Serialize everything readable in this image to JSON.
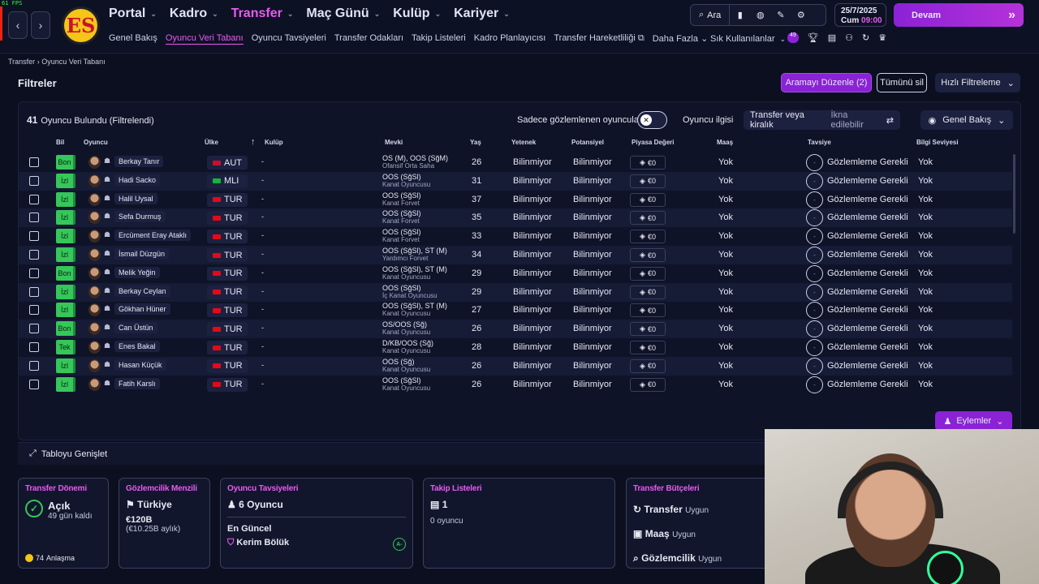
{
  "fps": "61 FPS",
  "nav": {
    "logo_text": "ES",
    "main": [
      {
        "label": "Portal",
        "active": false
      },
      {
        "label": "Kadro",
        "active": false
      },
      {
        "label": "Transfer",
        "active": true
      },
      {
        "label": "Maç Günü",
        "active": false
      },
      {
        "label": "Kulüp",
        "active": false
      },
      {
        "label": "Kariyer",
        "active": false
      }
    ],
    "sub": [
      {
        "label": "Genel Bakış"
      },
      {
        "label": "Oyuncu Veri Tabanı",
        "active": true
      },
      {
        "label": "Oyuncu Tavsiyeleri"
      },
      {
        "label": "Transfer Odakları"
      },
      {
        "label": "Takip Listeleri"
      },
      {
        "label": "Kadro Planlayıcısı"
      },
      {
        "label": "Transfer Hareketliliği"
      },
      {
        "label": "Daha Fazla"
      }
    ],
    "search_label": "Ara",
    "date": "25/7/2025",
    "day": "Cum",
    "time": "09:00",
    "continue_label": "Devam",
    "shortcuts_label": "Sık Kullanılanlar",
    "notif_count": "49"
  },
  "breadcrumb": {
    "root": "Transfer",
    "current": "Oyuncu Veri Tabanı"
  },
  "filters": {
    "title": "Filtreler",
    "edit_search": "Aramayı Düzenle (2)",
    "clear_all": "Tümünü sil",
    "quick_filter": "Hızlı Filtreleme"
  },
  "table_toolbar": {
    "count": "41",
    "count_label": "Oyuncu Bulundu (Filtrelendi)",
    "only_scouted": "Sadece gözlemlenen oyuncular",
    "interest_label": "Oyuncu ilgisi",
    "interest_value": "Transfer veya kiralık",
    "interest_hint": "İkna edilebilir",
    "view_label": "Genel Bakış"
  },
  "columns": {
    "bil": "Bil",
    "oyuncu": "Oyuncu",
    "ulke": "Ülke",
    "kulup": "Kulüp",
    "mevki": "Mevki",
    "yas": "Yaş",
    "yetenek": "Yetenek",
    "potansiyel": "Potansiyel",
    "piyasa": "Piyasa Değeri",
    "maas": "Maaş",
    "tavsiye": "Tavsiye",
    "bilgi": "Bilgi Seviyesi"
  },
  "rows": [
    {
      "bil": "Bon",
      "name": "Berkay Tanır",
      "country": "AUT",
      "flag": "#c8102e",
      "club": "-",
      "pos": "OS (M), OOS (SğM)",
      "role": "Ofansif Orta Saha",
      "age": "26",
      "yet": "Bilinmiyor",
      "pot": "Bilinmiyor",
      "value": "€0",
      "wage": "Yok",
      "rec": "Gözlemleme Gerekli",
      "know": "Yok"
    },
    {
      "bil": "İzl",
      "name": "Hadi Sacko",
      "country": "MLI",
      "flag": "#14b53a",
      "club": "-",
      "pos": "OOS (SğSl)",
      "role": "Kanat Oyuncusu",
      "age": "31",
      "yet": "Bilinmiyor",
      "pot": "Bilinmiyor",
      "value": "€0",
      "wage": "Yok",
      "rec": "Gözlemleme Gerekli",
      "know": "Yok"
    },
    {
      "bil": "İzl",
      "name": "Halil Uysal",
      "country": "TUR",
      "flag": "#e30a17",
      "club": "-",
      "pos": "OOS (SğSl)",
      "role": "Kanat Forvet",
      "age": "37",
      "yet": "Bilinmiyor",
      "pot": "Bilinmiyor",
      "value": "€0",
      "wage": "Yok",
      "rec": "Gözlemleme Gerekli",
      "know": "Yok"
    },
    {
      "bil": "İzl",
      "name": "Sefa Durmuş",
      "country": "TUR",
      "flag": "#e30a17",
      "club": "-",
      "pos": "OOS (SğSl)",
      "role": "Kanat Forvet",
      "age": "35",
      "yet": "Bilinmiyor",
      "pot": "Bilinmiyor",
      "value": "€0",
      "wage": "Yok",
      "rec": "Gözlemleme Gerekli",
      "know": "Yok"
    },
    {
      "bil": "İzl",
      "name": "Ercüment Eray Ataklı",
      "country": "TUR",
      "flag": "#e30a17",
      "club": "-",
      "pos": "OOS (SğSl)",
      "role": "Kanat Forvet",
      "age": "33",
      "yet": "Bilinmiyor",
      "pot": "Bilinmiyor",
      "value": "€0",
      "wage": "Yok",
      "rec": "Gözlemleme Gerekli",
      "know": "Yok"
    },
    {
      "bil": "İzl",
      "name": "İsmail Düzgün",
      "country": "TUR",
      "flag": "#e30a17",
      "club": "-",
      "pos": "OOS (SğSl), ST (M)",
      "role": "Yardımcı Forvet",
      "age": "34",
      "yet": "Bilinmiyor",
      "pot": "Bilinmiyor",
      "value": "€0",
      "wage": "Yok",
      "rec": "Gözlemleme Gerekli",
      "know": "Yok"
    },
    {
      "bil": "Bon",
      "name": "Melik Yeğin",
      "country": "TUR",
      "flag": "#e30a17",
      "club": "-",
      "pos": "OOS (SğSl), ST (M)",
      "role": "Kanat Oyuncusu",
      "age": "29",
      "yet": "Bilinmiyor",
      "pot": "Bilinmiyor",
      "value": "€0",
      "wage": "Yok",
      "rec": "Gözlemleme Gerekli",
      "know": "Yok"
    },
    {
      "bil": "İzl",
      "name": "Berkay Ceylan",
      "country": "TUR",
      "flag": "#e30a17",
      "club": "-",
      "pos": "OOS (SğSl)",
      "role": "İç Kanat Oyuncusu",
      "age": "29",
      "yet": "Bilinmiyor",
      "pot": "Bilinmiyor",
      "value": "€0",
      "wage": "Yok",
      "rec": "Gözlemleme Gerekli",
      "know": "Yok"
    },
    {
      "bil": "İzl",
      "name": "Gökhan Hüner",
      "country": "TUR",
      "flag": "#e30a17",
      "club": "-",
      "pos": "OOS (SğSl), ST (M)",
      "role": "Kanat Oyuncusu",
      "age": "27",
      "yet": "Bilinmiyor",
      "pot": "Bilinmiyor",
      "value": "€0",
      "wage": "Yok",
      "rec": "Gözlemleme Gerekli",
      "know": "Yok"
    },
    {
      "bil": "Bon",
      "name": "Can Üstün",
      "country": "TUR",
      "flag": "#e30a17",
      "club": "-",
      "pos": "OS/OOS (Sğ)",
      "role": "Kanat Oyuncusu",
      "age": "26",
      "yet": "Bilinmiyor",
      "pot": "Bilinmiyor",
      "value": "€0",
      "wage": "Yok",
      "rec": "Gözlemleme Gerekli",
      "know": "Yok"
    },
    {
      "bil": "Tek",
      "name": "Enes Bakal",
      "country": "TUR",
      "flag": "#e30a17",
      "club": "-",
      "pos": "D/KB/OOS (Sğ)",
      "role": "Kanat Oyuncusu",
      "age": "28",
      "yet": "Bilinmiyor",
      "pot": "Bilinmiyor",
      "value": "€0",
      "wage": "Yok",
      "rec": "Gözlemleme Gerekli",
      "know": "Yok"
    },
    {
      "bil": "İzl",
      "name": "Hasan Küçük",
      "country": "TUR",
      "flag": "#e30a17",
      "club": "-",
      "pos": "OOS (Sğ)",
      "role": "Kanat Oyuncusu",
      "age": "26",
      "yet": "Bilinmiyor",
      "pot": "Bilinmiyor",
      "value": "€0",
      "wage": "Yok",
      "rec": "Gözlemleme Gerekli",
      "know": "Yok"
    },
    {
      "bil": "İzl",
      "name": "Fatih Karslı",
      "country": "TUR",
      "flag": "#e30a17",
      "club": "-",
      "pos": "OOS (SğSl)",
      "role": "Kanat Oyuncusu",
      "age": "26",
      "yet": "Bilinmiyor",
      "pot": "Bilinmiyor",
      "value": "€0",
      "wage": "Yok",
      "rec": "Gözlemleme Gerekli",
      "know": "Yok"
    }
  ],
  "actions_label": "Eylemler",
  "expand_label": "Tabloyu Genişlet",
  "cards": {
    "window": {
      "title": "Transfer Dönemi",
      "status": "Açık",
      "days": "49 gün kaldı",
      "deals": "74",
      "deals_label": "Anlaşma"
    },
    "scouting": {
      "title": "Gözlemcilik Menzili",
      "country": "Türkiye",
      "budget": "€120B",
      "monthly": "(€10.25B aylık)"
    },
    "recommend": {
      "title": "Oyuncu Tavsiyeleri",
      "count": "6 Oyuncu",
      "recent_label": "En Güncel",
      "recent_name": "Kerim Bölük",
      "grade": "A-"
    },
    "watchlist": {
      "title": "Takip Listeleri",
      "count": "1",
      "sub": "0 oyuncu"
    },
    "budgets": {
      "title": "Transfer Bütçeleri",
      "items": [
        {
          "label": "Transfer",
          "status": "Uygun"
        },
        {
          "label": "Maaş",
          "status": "Uygun"
        },
        {
          "label": "Gözlemcilik",
          "status": "Uygun"
        }
      ]
    }
  }
}
